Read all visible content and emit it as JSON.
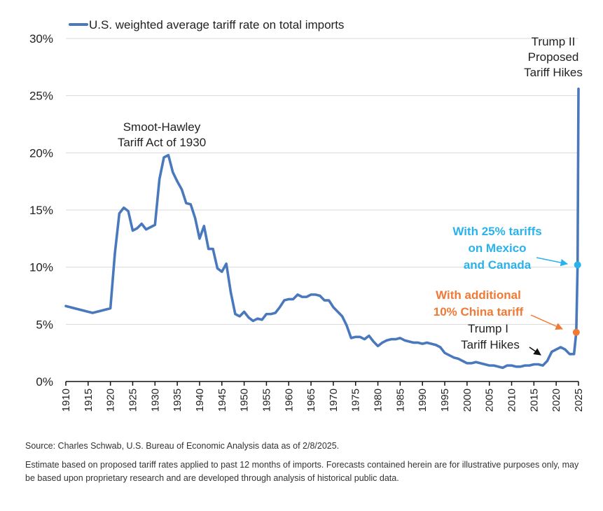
{
  "chart_data": {
    "type": "line",
    "legend": {
      "label": "U.S. weighted average tariff rate on total imports",
      "placement": "top-left"
    },
    "ylim": [
      0,
      30
    ],
    "y_ticks": [
      0,
      5,
      10,
      15,
      20,
      25,
      30
    ],
    "y_tick_labels": [
      "0%",
      "5%",
      "10%",
      "15%",
      "20%",
      "25%",
      "30%"
    ],
    "xlim": [
      1910,
      2025
    ],
    "x_ticks": [
      1910,
      1915,
      1920,
      1925,
      1930,
      1935,
      1940,
      1945,
      1950,
      1955,
      1960,
      1965,
      1970,
      1975,
      1980,
      1985,
      1990,
      1995,
      2000,
      2005,
      2010,
      2015,
      2020,
      2025
    ],
    "grid": "horizontal",
    "series": [
      {
        "name": "U.S. weighted average tariff rate on total imports",
        "color": "#4a78bd",
        "points": [
          [
            1910,
            6.6
          ],
          [
            1912,
            6.4
          ],
          [
            1914,
            6.2
          ],
          [
            1916,
            6.0
          ],
          [
            1918,
            6.2
          ],
          [
            1920,
            6.4
          ],
          [
            1921,
            11.2
          ],
          [
            1922,
            14.7
          ],
          [
            1923,
            15.2
          ],
          [
            1924,
            14.9
          ],
          [
            1925,
            13.2
          ],
          [
            1926,
            13.4
          ],
          [
            1927,
            13.8
          ],
          [
            1928,
            13.3
          ],
          [
            1929,
            13.5
          ],
          [
            1930,
            13.7
          ],
          [
            1931,
            17.7
          ],
          [
            1932,
            19.6
          ],
          [
            1933,
            19.8
          ],
          [
            1934,
            18.3
          ],
          [
            1935,
            17.5
          ],
          [
            1936,
            16.8
          ],
          [
            1937,
            15.6
          ],
          [
            1938,
            15.5
          ],
          [
            1939,
            14.3
          ],
          [
            1940,
            12.5
          ],
          [
            1941,
            13.6
          ],
          [
            1942,
            11.6
          ],
          [
            1943,
            11.6
          ],
          [
            1944,
            9.9
          ],
          [
            1945,
            9.6
          ],
          [
            1946,
            10.3
          ],
          [
            1947,
            7.8
          ],
          [
            1948,
            5.9
          ],
          [
            1949,
            5.7
          ],
          [
            1950,
            6.1
          ],
          [
            1951,
            5.6
          ],
          [
            1952,
            5.3
          ],
          [
            1953,
            5.5
          ],
          [
            1954,
            5.4
          ],
          [
            1955,
            5.9
          ],
          [
            1956,
            5.9
          ],
          [
            1957,
            6.0
          ],
          [
            1958,
            6.5
          ],
          [
            1959,
            7.1
          ],
          [
            1960,
            7.2
          ],
          [
            1961,
            7.2
          ],
          [
            1962,
            7.6
          ],
          [
            1963,
            7.4
          ],
          [
            1964,
            7.4
          ],
          [
            1965,
            7.6
          ],
          [
            1966,
            7.6
          ],
          [
            1967,
            7.5
          ],
          [
            1968,
            7.1
          ],
          [
            1969,
            7.1
          ],
          [
            1970,
            6.5
          ],
          [
            1971,
            6.1
          ],
          [
            1972,
            5.7
          ],
          [
            1973,
            4.9
          ],
          [
            1974,
            3.8
          ],
          [
            1975,
            3.9
          ],
          [
            1976,
            3.9
          ],
          [
            1977,
            3.7
          ],
          [
            1978,
            4.0
          ],
          [
            1979,
            3.5
          ],
          [
            1980,
            3.1
          ],
          [
            1981,
            3.4
          ],
          [
            1982,
            3.6
          ],
          [
            1983,
            3.7
          ],
          [
            1984,
            3.7
          ],
          [
            1985,
            3.8
          ],
          [
            1986,
            3.6
          ],
          [
            1987,
            3.5
          ],
          [
            1988,
            3.4
          ],
          [
            1989,
            3.4
          ],
          [
            1990,
            3.3
          ],
          [
            1991,
            3.4
          ],
          [
            1992,
            3.3
          ],
          [
            1993,
            3.2
          ],
          [
            1994,
            3.0
          ],
          [
            1995,
            2.5
          ],
          [
            1996,
            2.3
          ],
          [
            1997,
            2.1
          ],
          [
            1998,
            2.0
          ],
          [
            1999,
            1.8
          ],
          [
            2000,
            1.6
          ],
          [
            2001,
            1.6
          ],
          [
            2002,
            1.7
          ],
          [
            2003,
            1.6
          ],
          [
            2004,
            1.5
          ],
          [
            2005,
            1.4
          ],
          [
            2006,
            1.4
          ],
          [
            2007,
            1.3
          ],
          [
            2008,
            1.2
          ],
          [
            2009,
            1.4
          ],
          [
            2010,
            1.4
          ],
          [
            2011,
            1.3
          ],
          [
            2012,
            1.3
          ],
          [
            2013,
            1.4
          ],
          [
            2014,
            1.4
          ],
          [
            2015,
            1.5
          ],
          [
            2016,
            1.5
          ],
          [
            2017,
            1.4
          ],
          [
            2018,
            1.8
          ],
          [
            2019,
            2.6
          ],
          [
            2020,
            2.8
          ],
          [
            2021,
            3.0
          ],
          [
            2022,
            2.8
          ],
          [
            2023,
            2.4
          ],
          [
            2024,
            2.4
          ],
          [
            2024.5,
            4.3
          ],
          [
            2024.8,
            10.2
          ],
          [
            2025,
            25.6
          ]
        ]
      }
    ],
    "markers": [
      {
        "x": 2024.5,
        "y": 4.3,
        "color": "#f07a35"
      },
      {
        "x": 2024.8,
        "y": 10.2,
        "color": "#2ab2ec"
      }
    ],
    "annotations": [
      {
        "lines": [
          "Smoot-Hawley",
          "Tariff Act of 1930"
        ],
        "color": "#222222"
      },
      {
        "lines": [
          "Trump II",
          "Proposed",
          "Tariff Hikes"
        ],
        "color": "#222222"
      },
      {
        "lines": [
          "With 25% tariffs",
          "on Mexico",
          "and Canada"
        ],
        "color": "#2ab2ec"
      },
      {
        "lines": [
          "With additional",
          "10% China tariff"
        ],
        "color": "#f07a35"
      },
      {
        "lines": [
          "Trump I",
          "Tariff Hikes"
        ],
        "color": "#222222"
      }
    ]
  },
  "notes": {
    "source": "Source: Charles Schwab, U.S. Bureau of Economic Analysis data as of 2/8/2025.",
    "disclaimer": "Estimate based on proposed tariff rates applied to past 12 months of imports. Forecasts contained herein are for illustrative purposes only, may be based upon proprietary research and are developed through analysis of historical public data."
  }
}
